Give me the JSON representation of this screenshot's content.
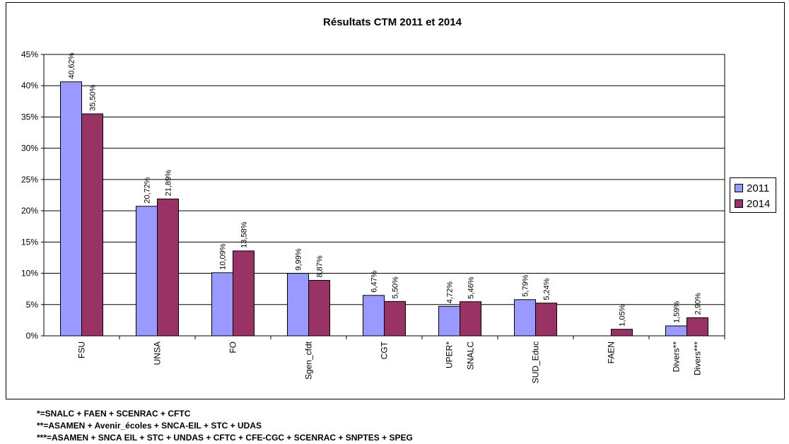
{
  "chart_data": {
    "type": "bar",
    "title": "Résultats CTM 2011 et 2014",
    "ylabel": "",
    "xlabel": "",
    "ylim": [
      0,
      45
    ],
    "yticks": [
      "0%",
      "5%",
      "10%",
      "15%",
      "20%",
      "25%",
      "30%",
      "35%",
      "40%",
      "45%"
    ],
    "grid": true,
    "legend": "right",
    "colors": {
      "2011": "#9999ff",
      "2014": "#993366"
    },
    "groups": [
      {
        "labels": [
          "FSU"
        ],
        "v2011": 40.62,
        "l2011": "40,62%",
        "v2014": 35.5,
        "l2014": "35,50%"
      },
      {
        "labels": [
          "UNSA"
        ],
        "v2011": 20.72,
        "l2011": "20,72%",
        "v2014": 21.89,
        "l2014": "21,89%"
      },
      {
        "labels": [
          "FO"
        ],
        "v2011": 10.09,
        "l2011": "10,09%",
        "v2014": 13.58,
        "l2014": "13,58%"
      },
      {
        "labels": [
          "Sgen_cfdt"
        ],
        "v2011": 9.99,
        "l2011": "9,99%",
        "v2014": 8.87,
        "l2014": "8,87%"
      },
      {
        "labels": [
          "CGT"
        ],
        "v2011": 6.47,
        "l2011": "6,47%",
        "v2014": 5.5,
        "l2014": "5,50%"
      },
      {
        "labels": [
          "UPER*",
          "SNALC"
        ],
        "v2011": 4.72,
        "l2011": "4,72%",
        "v2014": 5.46,
        "l2014": "5,46%"
      },
      {
        "labels": [
          "SUD_Educ"
        ],
        "v2011": 5.79,
        "l2011": "5,79%",
        "v2014": 5.24,
        "l2014": "5,24%"
      },
      {
        "labels": [
          "FAEN"
        ],
        "v2011": null,
        "l2011": "",
        "v2014": 1.05,
        "l2014": "1,05%"
      },
      {
        "labels": [
          "Divers**",
          "Divers***"
        ],
        "v2011": 1.59,
        "l2011": "1,59%",
        "v2014": 2.9,
        "l2014": "2,90%"
      }
    ],
    "series": [
      {
        "name": "2011"
      },
      {
        "name": "2014"
      }
    ]
  },
  "footnotes": [
    "*=SNALC + FAEN + SCENRAC + CFTC",
    "**=ASAMEN + Avenir_écoles + SNCA-EIL + STC + UDAS",
    "***=ASAMEN + SNCA  EIL + STC + UNDAS + CFTC + CFE-CGC + SCENRAC + SNPTES + SPEG"
  ]
}
